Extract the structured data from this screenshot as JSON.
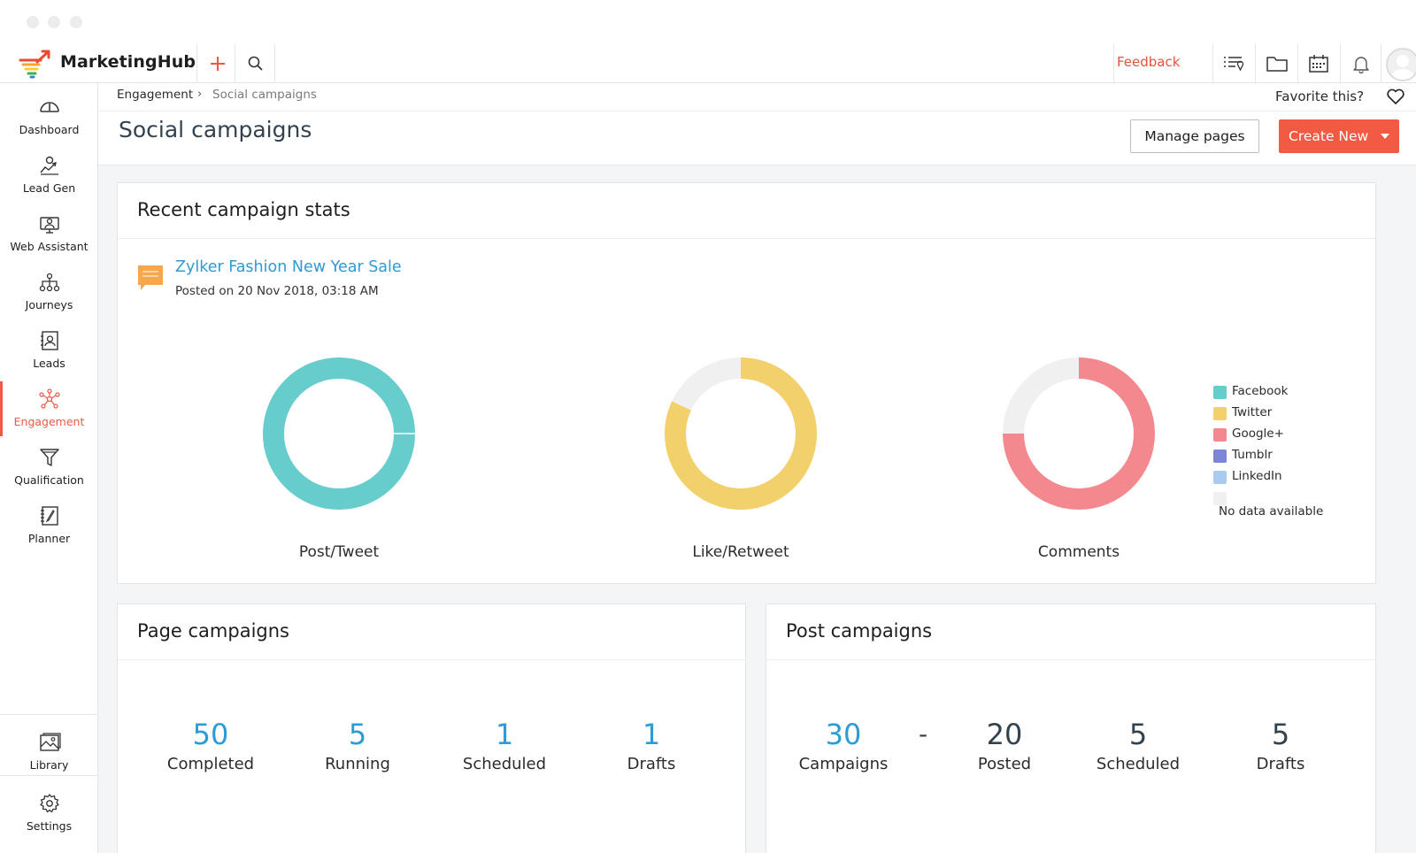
{
  "app": {
    "name": "MarketingHub",
    "feedback_label": "Feedback"
  },
  "sidebar": {
    "items": [
      {
        "label": "Dashboard",
        "icon": "dashboard-gauge-icon"
      },
      {
        "label": "Lead Gen",
        "icon": "lead-gen-icon"
      },
      {
        "label": "Web Assistant",
        "icon": "web-assistant-icon"
      },
      {
        "label": "Journeys",
        "icon": "journeys-icon"
      },
      {
        "label": "Leads",
        "icon": "leads-icon"
      },
      {
        "label": "Engagement",
        "icon": "engagement-icon",
        "active": true
      },
      {
        "label": "Qualification",
        "icon": "funnel-icon"
      },
      {
        "label": "Planner",
        "icon": "planner-icon"
      }
    ],
    "bottom": [
      {
        "label": "Library",
        "icon": "library-icon"
      },
      {
        "label": "Settings",
        "icon": "gear-icon"
      }
    ]
  },
  "breadcrumb": {
    "parent": "Engagement",
    "separator": "›",
    "current": "Social campaigns"
  },
  "favorite_label": "Favorite this?",
  "page_title": "Social campaigns",
  "actions": {
    "manage_pages": "Manage pages",
    "create_new": "Create New"
  },
  "recent_stats": {
    "title": "Recent campaign stats",
    "campaign_name": "Zylker Fashion New Year Sale",
    "posted_on": "Posted on 20 Nov 2018, 03:18 AM"
  },
  "chart_data": [
    {
      "type": "pie",
      "title": "Post/Tweet",
      "slices": [
        {
          "name": "Facebook",
          "value": 100
        }
      ],
      "donut": true
    },
    {
      "type": "pie",
      "title": "Like/Retweet",
      "slices": [
        {
          "name": "Twitter",
          "value": 82
        },
        {
          "name": "",
          "value": 18
        }
      ],
      "donut": true
    },
    {
      "type": "pie",
      "title": "Comments",
      "slices": [
        {
          "name": "Google+",
          "value": 75
        },
        {
          "name": "",
          "value": 25
        }
      ],
      "donut": true
    }
  ],
  "legend": {
    "items": [
      {
        "label": "Facebook",
        "color": "#66cdcc"
      },
      {
        "label": "Twitter",
        "color": "#f2d06b"
      },
      {
        "label": "Google+",
        "color": "#f4888f"
      },
      {
        "label": "Tumblr",
        "color": "#7d86d6"
      },
      {
        "label": "LinkedIn",
        "color": "#a9cbef"
      }
    ],
    "no_data_color": "#f0f0f0",
    "no_data_label": "No data available"
  },
  "page_campaigns": {
    "title": "Page campaigns",
    "stats": [
      {
        "value": "50",
        "label": "Completed"
      },
      {
        "value": "5",
        "label": "Running"
      },
      {
        "value": "1",
        "label": "Scheduled"
      },
      {
        "value": "1",
        "label": "Drafts"
      }
    ]
  },
  "post_campaigns": {
    "title": "Post campaigns",
    "separator": "-",
    "stats": [
      {
        "value": "30",
        "label": "Campaigns"
      },
      {
        "value": "20",
        "label": "Posted"
      },
      {
        "value": "5",
        "label": "Scheduled"
      },
      {
        "value": "5",
        "label": "Drafts"
      }
    ]
  }
}
